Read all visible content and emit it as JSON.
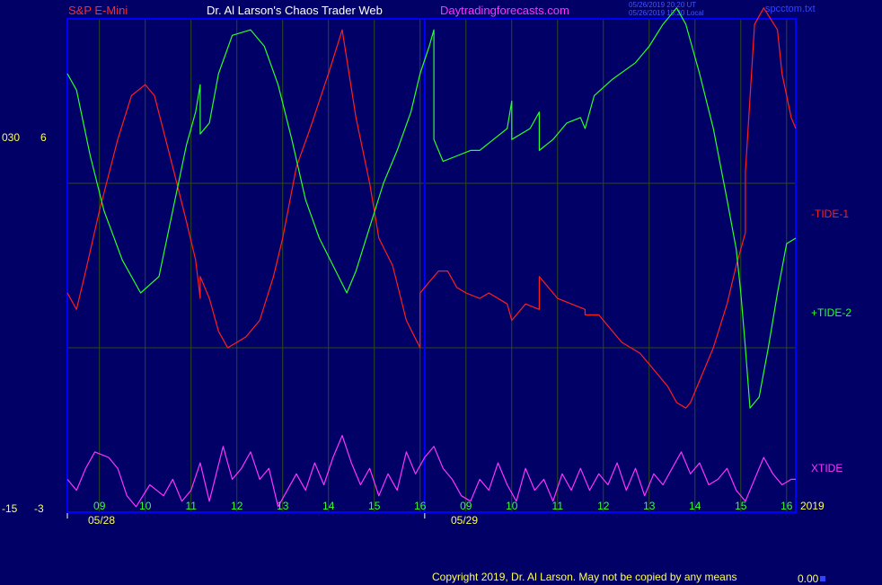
{
  "header": {
    "symbol": "S&P E-Mini",
    "author": "Dr. Al Larson's Chaos Trader Web",
    "site": "Daytradingforecasts.com",
    "stamp_ut": "05/26/2019 20:20 UT",
    "stamp_local": "05/26/2019 15:20 Local",
    "filename": "spcctom.txt"
  },
  "footer": {
    "copyright": "Copyright 2019, Dr. Al Larson. May not be copied by any means",
    "value": "0.00"
  },
  "colors": {
    "background": "#000066",
    "frame": "#0000ff",
    "grid": "#2e4a18",
    "tide1": "#ff1e1e",
    "tide2": "#2aff2a",
    "xtide": "#ff33ff",
    "header_red": "#ff2a2a",
    "header_white": "#ffffff",
    "header_magenta": "#ff33ff",
    "axis_yellow": "#ffff55",
    "tick_green": "#33ff33"
  },
  "chart_data": {
    "type": "line",
    "title": "S&P E-Mini",
    "y_axis_labels": {
      "left_top": "030",
      "right_top": "6",
      "left_bottom": "-15",
      "right_bottom": "-3"
    },
    "x_tick_labels": [
      "09",
      "10",
      "11",
      "12",
      "13",
      "14",
      "15",
      "16",
      "09",
      "10",
      "11",
      "12",
      "13",
      "14",
      "15",
      "16"
    ],
    "date_labels": [
      "05/28",
      "05/29"
    ],
    "year_label": "2019",
    "x_range_hours": [
      8.3,
      24.2
    ],
    "y_range": [
      -3,
      6
    ],
    "series": [
      {
        "name": "-TIDE-1",
        "color": "#ff1e1e",
        "points": [
          [
            8.3,
            1.0
          ],
          [
            8.5,
            0.7
          ],
          [
            8.7,
            1.4
          ],
          [
            9.0,
            2.5
          ],
          [
            9.4,
            3.8
          ],
          [
            9.7,
            4.6
          ],
          [
            10.0,
            4.8
          ],
          [
            10.2,
            4.6
          ],
          [
            10.6,
            3.3
          ],
          [
            10.9,
            2.3
          ],
          [
            11.1,
            1.6
          ],
          [
            11.2,
            0.9
          ],
          [
            11.2,
            1.3
          ],
          [
            11.4,
            0.9
          ],
          [
            11.6,
            0.3
          ],
          [
            11.8,
            0.0
          ],
          [
            12.2,
            0.2
          ],
          [
            12.5,
            0.5
          ],
          [
            12.8,
            1.3
          ],
          [
            13.0,
            2.0
          ],
          [
            13.3,
            3.3
          ],
          [
            13.6,
            4.0
          ],
          [
            14.0,
            5.0
          ],
          [
            14.3,
            5.8
          ],
          [
            14.6,
            4.2
          ],
          [
            14.9,
            3.0
          ],
          [
            15.1,
            2.0
          ],
          [
            15.4,
            1.5
          ],
          [
            15.7,
            0.5
          ],
          [
            16.0,
            0.0
          ],
          [
            16.0,
            1.0
          ],
          [
            16.2,
            1.2
          ],
          [
            16.4,
            1.4
          ],
          [
            16.6,
            1.4
          ],
          [
            16.8,
            1.1
          ],
          [
            17.0,
            1.0
          ],
          [
            17.3,
            0.9
          ],
          [
            17.5,
            1.0
          ],
          [
            17.9,
            0.8
          ],
          [
            18.0,
            0.5
          ],
          [
            18.3,
            0.8
          ],
          [
            18.6,
            0.7
          ],
          [
            18.6,
            1.3
          ],
          [
            18.8,
            1.1
          ],
          [
            19.0,
            0.9
          ],
          [
            19.3,
            0.8
          ],
          [
            19.6,
            0.7
          ],
          [
            19.6,
            0.6
          ],
          [
            19.9,
            0.6
          ],
          [
            20.1,
            0.4
          ],
          [
            20.4,
            0.1
          ],
          [
            20.8,
            -0.1
          ],
          [
            21.1,
            -0.4
          ],
          [
            21.4,
            -0.7
          ],
          [
            21.6,
            -1.0
          ],
          [
            21.8,
            -1.1
          ],
          [
            21.9,
            -1.0
          ],
          [
            22.1,
            -0.6
          ],
          [
            22.4,
            0.0
          ],
          [
            22.7,
            0.8
          ],
          [
            22.9,
            1.5
          ],
          [
            23.1,
            2.1
          ],
          [
            23.1,
            3.2
          ],
          [
            23.3,
            5.9
          ],
          [
            23.5,
            6.2
          ],
          [
            23.8,
            5.8
          ],
          [
            23.9,
            5.0
          ],
          [
            24.1,
            4.2
          ],
          [
            24.2,
            4.0
          ]
        ]
      },
      {
        "name": "+TIDE-2",
        "color": "#2aff2a",
        "points": [
          [
            8.3,
            5.0
          ],
          [
            8.5,
            4.7
          ],
          [
            8.8,
            3.5
          ],
          [
            9.1,
            2.5
          ],
          [
            9.5,
            1.6
          ],
          [
            9.9,
            1.0
          ],
          [
            10.3,
            1.3
          ],
          [
            10.6,
            2.5
          ],
          [
            10.9,
            3.7
          ],
          [
            11.1,
            4.3
          ],
          [
            11.2,
            4.8
          ],
          [
            11.2,
            3.9
          ],
          [
            11.4,
            4.1
          ],
          [
            11.6,
            5.0
          ],
          [
            11.9,
            5.7
          ],
          [
            12.3,
            5.8
          ],
          [
            12.6,
            5.5
          ],
          [
            12.9,
            4.8
          ],
          [
            13.2,
            3.8
          ],
          [
            13.5,
            2.7
          ],
          [
            13.8,
            2.0
          ],
          [
            14.1,
            1.5
          ],
          [
            14.4,
            1.0
          ],
          [
            14.6,
            1.4
          ],
          [
            14.9,
            2.2
          ],
          [
            15.2,
            3.0
          ],
          [
            15.5,
            3.6
          ],
          [
            15.8,
            4.3
          ],
          [
            16.0,
            5.0
          ],
          [
            16.2,
            5.5
          ],
          [
            16.3,
            5.8
          ],
          [
            16.3,
            3.8
          ],
          [
            16.5,
            3.4
          ],
          [
            16.8,
            3.5
          ],
          [
            17.1,
            3.6
          ],
          [
            17.3,
            3.6
          ],
          [
            17.6,
            3.8
          ],
          [
            17.9,
            4.0
          ],
          [
            18.0,
            4.5
          ],
          [
            18.0,
            3.8
          ],
          [
            18.4,
            4.0
          ],
          [
            18.6,
            4.3
          ],
          [
            18.6,
            3.6
          ],
          [
            18.9,
            3.8
          ],
          [
            19.2,
            4.1
          ],
          [
            19.5,
            4.2
          ],
          [
            19.6,
            4.0
          ],
          [
            19.8,
            4.6
          ],
          [
            20.2,
            4.9
          ],
          [
            20.7,
            5.2
          ],
          [
            21.0,
            5.5
          ],
          [
            21.3,
            5.9
          ],
          [
            21.6,
            6.2
          ],
          [
            21.8,
            5.9
          ],
          [
            22.1,
            5.0
          ],
          [
            22.4,
            4.0
          ],
          [
            22.7,
            2.7
          ],
          [
            22.9,
            1.8
          ],
          [
            23.0,
            1.0
          ],
          [
            23.1,
            0.0
          ],
          [
            23.2,
            -1.1
          ],
          [
            23.4,
            -0.9
          ],
          [
            23.6,
            0.0
          ],
          [
            23.8,
            1.0
          ],
          [
            24.0,
            1.9
          ],
          [
            24.2,
            2.0
          ]
        ]
      },
      {
        "name": "XTIDE",
        "color": "#ff33ff",
        "points": [
          [
            8.3,
            -2.4
          ],
          [
            8.5,
            -2.6
          ],
          [
            8.7,
            -2.2
          ],
          [
            8.9,
            -1.9
          ],
          [
            9.2,
            -2.0
          ],
          [
            9.4,
            -2.2
          ],
          [
            9.6,
            -2.7
          ],
          [
            9.8,
            -2.9
          ],
          [
            10.1,
            -2.5
          ],
          [
            10.4,
            -2.7
          ],
          [
            10.6,
            -2.4
          ],
          [
            10.8,
            -2.8
          ],
          [
            11.0,
            -2.6
          ],
          [
            11.2,
            -2.1
          ],
          [
            11.4,
            -2.8
          ],
          [
            11.7,
            -1.8
          ],
          [
            11.9,
            -2.4
          ],
          [
            12.1,
            -2.2
          ],
          [
            12.3,
            -1.9
          ],
          [
            12.5,
            -2.4
          ],
          [
            12.7,
            -2.2
          ],
          [
            12.9,
            -2.9
          ],
          [
            13.1,
            -2.6
          ],
          [
            13.3,
            -2.3
          ],
          [
            13.5,
            -2.6
          ],
          [
            13.7,
            -2.1
          ],
          [
            13.9,
            -2.5
          ],
          [
            14.1,
            -2.0
          ],
          [
            14.3,
            -1.6
          ],
          [
            14.5,
            -2.1
          ],
          [
            14.7,
            -2.5
          ],
          [
            14.9,
            -2.2
          ],
          [
            15.1,
            -2.7
          ],
          [
            15.3,
            -2.3
          ],
          [
            15.5,
            -2.6
          ],
          [
            15.7,
            -1.9
          ],
          [
            15.9,
            -2.3
          ],
          [
            16.1,
            -2.0
          ],
          [
            16.3,
            -1.8
          ],
          [
            16.5,
            -2.2
          ],
          [
            16.7,
            -2.4
          ],
          [
            16.9,
            -2.7
          ],
          [
            17.1,
            -2.8
          ],
          [
            17.3,
            -2.4
          ],
          [
            17.5,
            -2.6
          ],
          [
            17.7,
            -2.1
          ],
          [
            17.9,
            -2.5
          ],
          [
            18.1,
            -2.8
          ],
          [
            18.3,
            -2.2
          ],
          [
            18.5,
            -2.6
          ],
          [
            18.7,
            -2.4
          ],
          [
            18.9,
            -2.8
          ],
          [
            19.1,
            -2.3
          ],
          [
            19.3,
            -2.6
          ],
          [
            19.5,
            -2.2
          ],
          [
            19.7,
            -2.6
          ],
          [
            19.9,
            -2.3
          ],
          [
            20.1,
            -2.5
          ],
          [
            20.3,
            -2.1
          ],
          [
            20.5,
            -2.6
          ],
          [
            20.7,
            -2.2
          ],
          [
            20.9,
            -2.7
          ],
          [
            21.1,
            -2.3
          ],
          [
            21.3,
            -2.5
          ],
          [
            21.5,
            -2.2
          ],
          [
            21.7,
            -1.9
          ],
          [
            21.9,
            -2.3
          ],
          [
            22.1,
            -2.1
          ],
          [
            22.3,
            -2.5
          ],
          [
            22.5,
            -2.4
          ],
          [
            22.7,
            -2.2
          ],
          [
            22.9,
            -2.6
          ],
          [
            23.1,
            -2.8
          ],
          [
            23.3,
            -2.4
          ],
          [
            23.5,
            -2.0
          ],
          [
            23.7,
            -2.3
          ],
          [
            23.9,
            -2.5
          ],
          [
            24.1,
            -2.4
          ],
          [
            24.2,
            -2.4
          ]
        ]
      }
    ]
  }
}
